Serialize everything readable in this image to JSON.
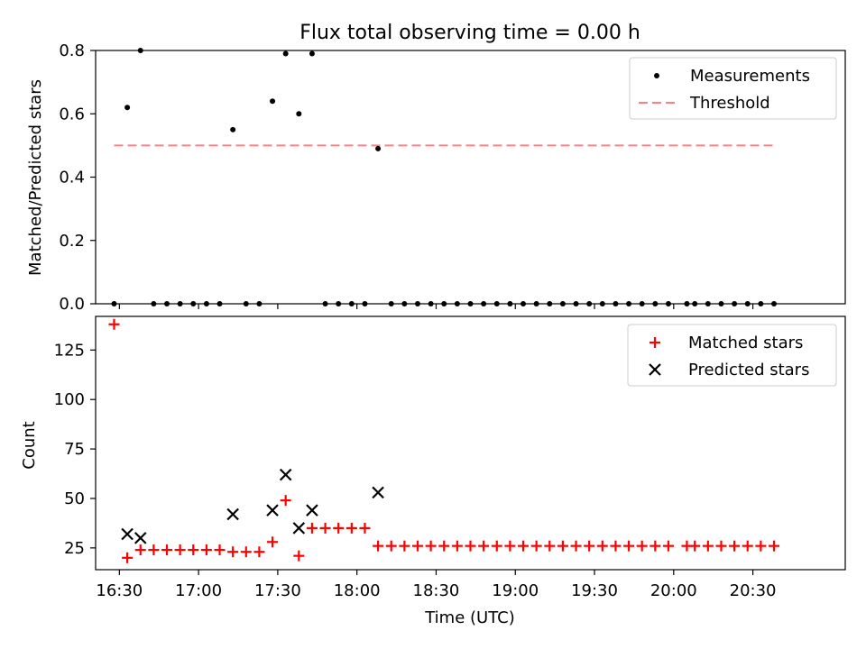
{
  "figure": {
    "title": "Flux total observing time = 0.00 h",
    "xlabel": "Time (UTC)"
  },
  "colors": {
    "measurements": "#000000",
    "threshold": "#ff7f7f",
    "matched": "#ff0000",
    "predicted": "#000000"
  },
  "chart_data": [
    {
      "type": "scatter",
      "ylabel": "Matched/Predicted stars",
      "xlim": [
        "16:21",
        "21:05"
      ],
      "ylim": [
        0,
        0.8
      ],
      "yticks": [
        0.0,
        0.2,
        0.4,
        0.6,
        0.8
      ],
      "ytick_labels": [
        "0.0",
        "0.2",
        "0.4",
        "0.6",
        "0.8"
      ],
      "legend": {
        "placement": "upper right",
        "entries": [
          "Measurements",
          "Threshold"
        ]
      },
      "series": [
        {
          "name": "Measurements",
          "marker": "dot",
          "x": [
            "16:28",
            "16:33",
            "16:38",
            "16:43",
            "16:48",
            "16:53",
            "16:58",
            "17:03",
            "17:08",
            "17:13",
            "17:18",
            "17:23",
            "17:28",
            "17:33",
            "17:38",
            "17:43",
            "17:48",
            "17:53",
            "17:58",
            "18:03",
            "18:08",
            "18:13",
            "18:18",
            "18:23",
            "18:28",
            "18:33",
            "18:38",
            "18:43",
            "18:48",
            "18:53",
            "18:58",
            "19:03",
            "19:08",
            "19:13",
            "19:18",
            "19:23",
            "19:28",
            "19:33",
            "19:38",
            "19:43",
            "19:48",
            "19:53",
            "19:58",
            "20:05",
            "20:08",
            "20:13",
            "20:18",
            "20:23",
            "20:28",
            "20:33",
            "20:38"
          ],
          "y": [
            0.0,
            0.62,
            0.8,
            0.0,
            0.0,
            0.0,
            0.0,
            0.0,
            0.0,
            0.55,
            0.0,
            0.0,
            0.64,
            0.79,
            0.6,
            0.79,
            0.0,
            0.0,
            0.0,
            0.0,
            0.49,
            0.0,
            0.0,
            0.0,
            0.0,
            0.0,
            0.0,
            0.0,
            0.0,
            0.0,
            0.0,
            0.0,
            0.0,
            0.0,
            0.0,
            0.0,
            0.0,
            0.0,
            0.0,
            0.0,
            0.0,
            0.0,
            0.0,
            0.0,
            0.0,
            0.0,
            0.0,
            0.0,
            0.0,
            0.0,
            0.0
          ]
        },
        {
          "name": "Threshold",
          "marker": "dashed-line",
          "x": [
            "16:28",
            "20:38"
          ],
          "y": [
            0.5,
            0.5
          ]
        }
      ]
    },
    {
      "type": "scatter",
      "ylabel": "Count",
      "xlim": [
        "16:21",
        "21:05"
      ],
      "ylim": [
        14,
        142
      ],
      "yticks": [
        25,
        50,
        75,
        100,
        125
      ],
      "ytick_labels": [
        "25",
        "50",
        "75",
        "100",
        "125"
      ],
      "xticks": [
        "16:30",
        "17:00",
        "17:30",
        "18:00",
        "18:30",
        "19:00",
        "19:30",
        "20:00",
        "20:30"
      ],
      "legend": {
        "placement": "upper right",
        "entries": [
          "Matched stars",
          "Predicted stars"
        ]
      },
      "series": [
        {
          "name": "Matched stars",
          "marker": "plus",
          "x": [
            "16:28",
            "16:33",
            "16:38",
            "16:43",
            "16:48",
            "16:53",
            "16:58",
            "17:03",
            "17:08",
            "17:13",
            "17:18",
            "17:23",
            "17:28",
            "17:33",
            "17:38",
            "17:43",
            "17:48",
            "17:53",
            "17:58",
            "18:03",
            "18:08",
            "18:13",
            "18:18",
            "18:23",
            "18:28",
            "18:33",
            "18:38",
            "18:43",
            "18:48",
            "18:53",
            "18:58",
            "19:03",
            "19:08",
            "19:13",
            "19:18",
            "19:23",
            "19:28",
            "19:33",
            "19:38",
            "19:43",
            "19:48",
            "19:53",
            "19:58",
            "20:05",
            "20:08",
            "20:13",
            "20:18",
            "20:23",
            "20:28",
            "20:33",
            "20:38"
          ],
          "y": [
            138,
            20,
            24,
            24,
            24,
            24,
            24,
            24,
            24,
            23,
            23,
            23,
            28,
            49,
            21,
            35,
            35,
            35,
            35,
            35,
            26,
            26,
            26,
            26,
            26,
            26,
            26,
            26,
            26,
            26,
            26,
            26,
            26,
            26,
            26,
            26,
            26,
            26,
            26,
            26,
            26,
            26,
            26,
            26,
            26,
            26,
            26,
            26,
            26,
            26,
            26
          ]
        },
        {
          "name": "Predicted stars",
          "marker": "x",
          "x": [
            "16:33",
            "16:38",
            "17:13",
            "17:28",
            "17:33",
            "17:38",
            "17:43",
            "18:08"
          ],
          "y": [
            32,
            30,
            42,
            44,
            62,
            35,
            44,
            53
          ]
        }
      ]
    }
  ]
}
